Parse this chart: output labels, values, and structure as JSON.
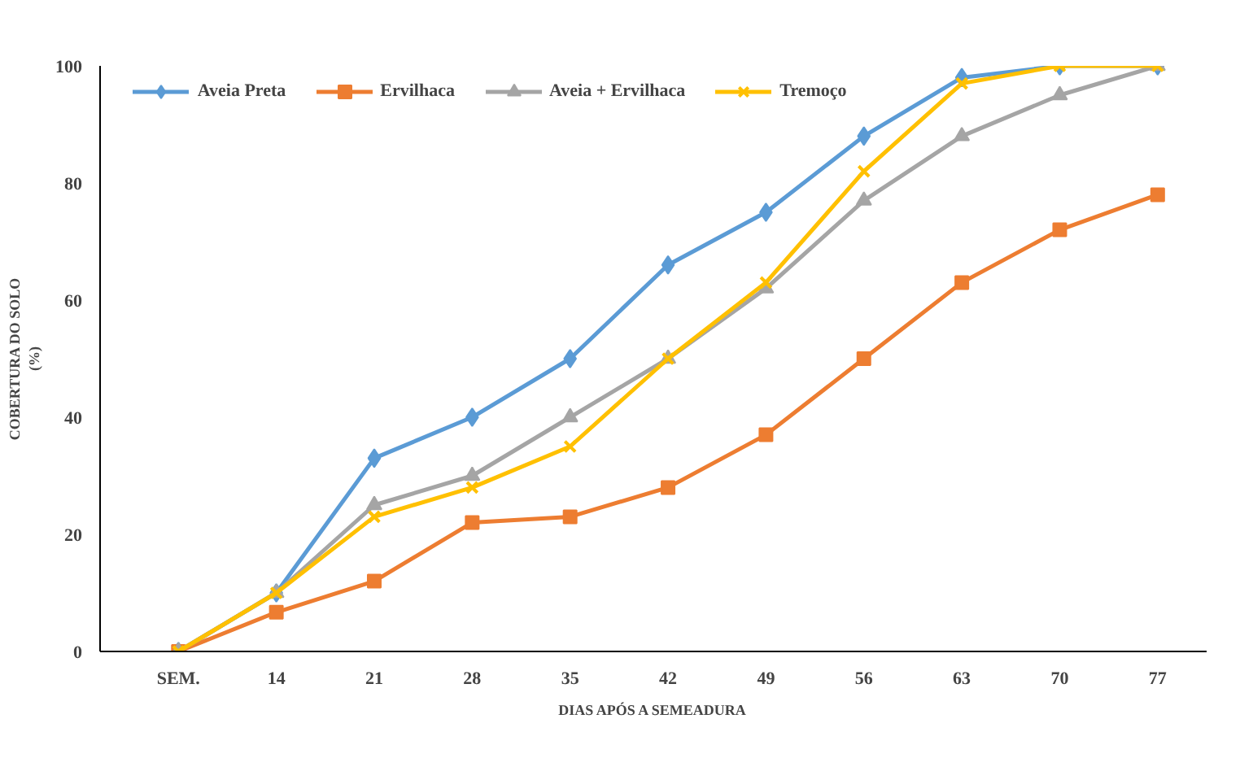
{
  "chart_data": {
    "type": "line",
    "xlabel": "DIAS APÓS A SEMEADURA",
    "ylabel": "COBERTURA DO SOLO\n(%)",
    "categories": [
      "SEM.",
      "14",
      "21",
      "28",
      "35",
      "42",
      "49",
      "56",
      "63",
      "70",
      "77"
    ],
    "series": [
      {
        "name": "Aveia Preta",
        "color": "#5b9bd5",
        "marker": "diamond",
        "values": [
          0,
          10,
          33,
          40,
          50,
          66,
          75,
          88,
          98,
          100,
          100
        ]
      },
      {
        "name": "Ervilhaca",
        "color": "#ed7d31",
        "marker": "square",
        "values": [
          0,
          6.7,
          12,
          22,
          23,
          28,
          37,
          50,
          63,
          72,
          78
        ]
      },
      {
        "name": "Aveia + Ervilhaca",
        "color": "#a5a5a5",
        "marker": "triangle",
        "values": [
          0,
          10,
          25,
          30,
          40,
          50,
          62,
          77,
          88,
          95,
          100
        ]
      },
      {
        "name": "Tremoço",
        "color": "#ffc000",
        "marker": "cross",
        "values": [
          0,
          10,
          23,
          28,
          35,
          50,
          63,
          82,
          97,
          100,
          100
        ]
      }
    ],
    "ylim": [
      0,
      100
    ],
    "yticks": [
      0,
      20,
      40,
      60,
      80,
      100
    ],
    "grid": false,
    "legend": "top"
  }
}
